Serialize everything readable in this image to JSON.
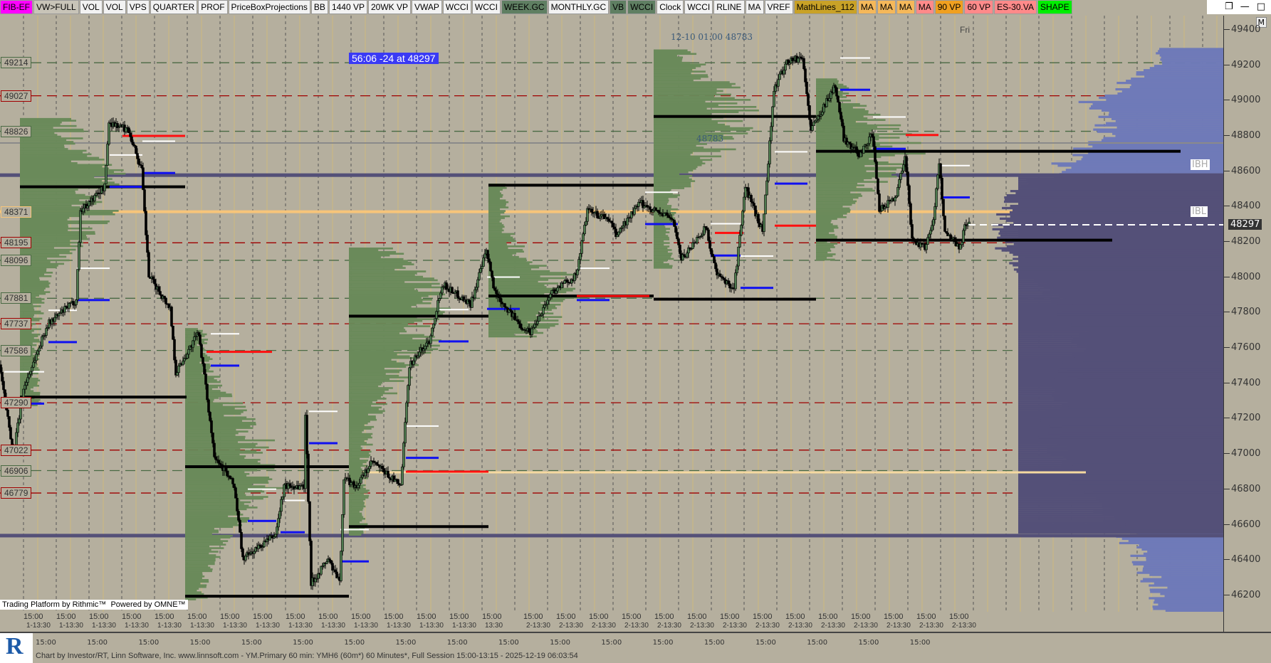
{
  "toolbar": {
    "buttons": [
      {
        "label": "FIB-EF",
        "color": "#ff00ff"
      },
      {
        "label": "VW>FULL",
        "color": "#c8c4b8"
      },
      {
        "label": "VOL",
        "color": "#f2f2f2"
      },
      {
        "label": "VOL",
        "color": "#f2f2f2"
      },
      {
        "label": "VPS",
        "color": "#f2f2f2"
      },
      {
        "label": "QUARTER",
        "color": "#f2f2f2"
      },
      {
        "label": "PROF",
        "color": "#f2f2f2"
      },
      {
        "label": "PriceBoxProjections",
        "color": "#f2f2f2"
      },
      {
        "label": "BB",
        "color": "#f2f2f2"
      },
      {
        "label": "1440 VP",
        "color": "#f2f2f2"
      },
      {
        "label": "20WK VP",
        "color": "#f2f2f2"
      },
      {
        "label": "VWAP",
        "color": "#f2f2f2"
      },
      {
        "label": "WCCI",
        "color": "#f2f2f2"
      },
      {
        "label": "WCCI",
        "color": "#f2f2f2"
      },
      {
        "label": "WEEK.GC",
        "color": "#5f7f62"
      },
      {
        "label": "MONTHLY.GC",
        "color": "#f2f2f2"
      },
      {
        "label": "VB",
        "color": "#5f7f62"
      },
      {
        "label": "WCCI",
        "color": "#5f7f62"
      },
      {
        "label": "Clock",
        "color": "#f2f2f2"
      },
      {
        "label": "WCCI",
        "color": "#f2f2f2"
      },
      {
        "label": "RLINE",
        "color": "#f2f2f2"
      },
      {
        "label": "MA",
        "color": "#f2f2f2"
      },
      {
        "label": "VREF",
        "color": "#f2f2f2"
      },
      {
        "label": "MathLines_112",
        "color": "#c9a227"
      },
      {
        "label": "MA",
        "color": "#f5b85a"
      },
      {
        "label": "MA",
        "color": "#f5b85a"
      },
      {
        "label": "MA",
        "color": "#f5b85a"
      },
      {
        "label": "MA",
        "color": "#ff8a8a"
      },
      {
        "label": "90 VP",
        "color": "#f0a020"
      },
      {
        "label": "60 VP",
        "color": "#ff8a8a"
      },
      {
        "label": "ES-30.VA",
        "color": "#ff8a8a"
      },
      {
        "label": "SHAPE",
        "color": "#00ee00"
      }
    ],
    "window_controls": {
      "restore": "❐",
      "minimize": "—",
      "maximize": "□"
    }
  },
  "chart": {
    "timer_label": "56:06  -24 at 48297",
    "annotation_top": "12-10 01:00   48783",
    "annotation_mid": "48783",
    "day_label": "Fri",
    "ibh_label": "IBH",
    "ibl_label": "IBL",
    "last_price": "48297",
    "m_button": "M",
    "colors": {
      "background": "#b5af9e",
      "up_candle": "#4e7a4e",
      "down_candle": "#000000",
      "session_profile": "#6a8a5a",
      "composite_profile": "#6f7ab8",
      "value_area": "#545078",
      "timer_bg": "#3a3af5"
    },
    "price_axis": [
      "49400",
      "49200",
      "49000",
      "48800",
      "48600",
      "48400",
      "48200",
      "48000",
      "47800",
      "47600",
      "47400",
      "47200",
      "47000",
      "46800",
      "46600",
      "46400",
      "46200"
    ],
    "level_labels": [
      {
        "text": "49214",
        "price": 49214,
        "kind": "green"
      },
      {
        "text": "49027",
        "price": 49027,
        "kind": "red"
      },
      {
        "text": "48826",
        "price": 48826,
        "kind": "green"
      },
      {
        "text": "48371",
        "price": 48371,
        "kind": "orange"
      },
      {
        "text": "48195",
        "price": 48195,
        "kind": "red"
      },
      {
        "text": "48096",
        "price": 48096,
        "kind": "green"
      },
      {
        "text": "47881",
        "price": 47881,
        "kind": "green"
      },
      {
        "text": "47737",
        "price": 47737,
        "kind": "red"
      },
      {
        "text": "47586",
        "price": 47586,
        "kind": "green"
      },
      {
        "text": "47290",
        "price": 47290,
        "kind": "red"
      },
      {
        "text": "47022",
        "price": 47022,
        "kind": "red"
      },
      {
        "text": "46906",
        "price": 46906,
        "kind": "green"
      },
      {
        "text": "46779",
        "price": 46779,
        "kind": "red"
      }
    ],
    "price_path": [
      [
        0,
        47505
      ],
      [
        10,
        47001
      ],
      [
        17,
        47367
      ],
      [
        34,
        47734
      ],
      [
        54,
        47871
      ],
      [
        57,
        48375
      ],
      [
        74,
        48512
      ],
      [
        77,
        48878
      ],
      [
        91,
        48832
      ],
      [
        100,
        48603
      ],
      [
        105,
        48008
      ],
      [
        120,
        47825
      ],
      [
        124,
        47459
      ],
      [
        140,
        47688
      ],
      [
        151,
        47001
      ],
      [
        165,
        46818
      ],
      [
        171,
        46406
      ],
      [
        194,
        46543
      ],
      [
        200,
        46818
      ],
      [
        214,
        46818
      ],
      [
        215,
        47230
      ],
      [
        219,
        46269
      ],
      [
        231,
        46406
      ],
      [
        239,
        46269
      ],
      [
        242,
        46864
      ],
      [
        251,
        46818
      ],
      [
        262,
        46955
      ],
      [
        282,
        46818
      ],
      [
        288,
        47505
      ],
      [
        302,
        47642
      ],
      [
        311,
        47963
      ],
      [
        331,
        47848
      ],
      [
        342,
        48146
      ],
      [
        348,
        47917
      ],
      [
        365,
        47734
      ],
      [
        373,
        47688
      ],
      [
        388,
        47917
      ],
      [
        405,
        48008
      ],
      [
        413,
        48375
      ],
      [
        428,
        48329
      ],
      [
        433,
        48237
      ],
      [
        450,
        48420
      ],
      [
        473,
        48329
      ],
      [
        479,
        48100
      ],
      [
        496,
        48283
      ],
      [
        504,
        48008
      ],
      [
        516,
        47940
      ],
      [
        524,
        48512
      ],
      [
        536,
        48260
      ],
      [
        544,
        49061
      ],
      [
        553,
        49221
      ],
      [
        564,
        49244
      ],
      [
        570,
        48832
      ],
      [
        579,
        48969
      ],
      [
        587,
        49084
      ],
      [
        593,
        48787
      ],
      [
        604,
        48695
      ],
      [
        613,
        48809
      ],
      [
        618,
        48375
      ],
      [
        630,
        48466
      ],
      [
        636,
        48695
      ],
      [
        641,
        48214
      ],
      [
        650,
        48168
      ],
      [
        656,
        48329
      ],
      [
        660,
        48649
      ],
      [
        664,
        48260
      ],
      [
        675,
        48168
      ],
      [
        678,
        48306
      ],
      [
        681,
        48297
      ]
    ],
    "sessions": [
      {
        "start": 14,
        "low": 47276,
        "high": 48901,
        "poc": 48512
      },
      {
        "start": 130,
        "low": 46177,
        "high": 47710,
        "poc": 46928
      },
      {
        "start": 245,
        "low": 46543,
        "high": 48168,
        "poc": 47780
      },
      {
        "start": 343,
        "low": 47665,
        "high": 48535,
        "poc": 47894
      },
      {
        "start": 459,
        "low": 48054,
        "high": 49290,
        "poc": 48910
      },
      {
        "start": 573,
        "low": 48100,
        "high": 49130,
        "poc": 48713
      }
    ],
    "poc_lines": [
      [
        14,
        130,
        48512
      ],
      [
        14,
        131,
        47322
      ],
      [
        130,
        245,
        46928
      ],
      [
        130,
        245,
        46195
      ],
      [
        245,
        343,
        47780
      ],
      [
        245,
        343,
        46589
      ],
      [
        343,
        459,
        48521
      ],
      [
        343,
        459,
        47894
      ],
      [
        459,
        573,
        48910
      ],
      [
        459,
        573,
        47876
      ],
      [
        573,
        829,
        48713
      ],
      [
        573,
        781,
        48210
      ]
    ],
    "blue_lines": [
      [
        54,
        77,
        47871
      ],
      [
        77,
        100,
        48512
      ],
      [
        100,
        123,
        48590
      ],
      [
        34,
        54,
        47633
      ],
      [
        3,
        31,
        47285
      ],
      [
        148,
        168,
        47500
      ],
      [
        217,
        237,
        47061
      ],
      [
        174,
        194,
        46621
      ],
      [
        197,
        214,
        46557
      ],
      [
        239,
        259,
        46392
      ],
      [
        285,
        308,
        46978
      ],
      [
        308,
        329,
        47637
      ],
      [
        342,
        365,
        47821
      ],
      [
        405,
        428,
        47871
      ],
      [
        453,
        476,
        48301
      ],
      [
        499,
        520,
        48123
      ],
      [
        520,
        543,
        47940
      ],
      [
        544,
        567,
        48530
      ],
      [
        590,
        611,
        49061
      ],
      [
        613,
        636,
        48727
      ],
      [
        661,
        681,
        48452
      ]
    ],
    "red_lines": [
      [
        86,
        130,
        48800
      ],
      [
        145,
        191,
        47578
      ],
      [
        285,
        343,
        46900
      ],
      [
        405,
        456,
        47894
      ],
      [
        502,
        522,
        48251
      ],
      [
        544,
        573,
        48292
      ],
      [
        636,
        659,
        48805
      ]
    ],
    "value_area": {
      "high": 48580,
      "low": 46550
    },
    "time_labels_row1": [
      "15:00",
      "15:00",
      "15:00",
      "15:00",
      "15:00",
      "15:00",
      "15:00",
      "15:00",
      "15:00",
      "15:00",
      "15:00",
      "15:00",
      "15:00",
      "15:00",
      "15:00",
      "15:00",
      "15:00",
      "15:00",
      "15:00",
      "15:00",
      "15:00",
      "15:00",
      "15:00",
      "15:00",
      "15:00",
      "15:00",
      "15:00",
      "15:00",
      "15:00"
    ],
    "time_labels_row2": [
      "1-13:30",
      "1-13:30",
      "1-13:30",
      "1-13:30",
      "1-13:30",
      "1-13:30",
      "1-13:30",
      "1-13:30",
      "1-13:30",
      "1-13:30",
      "1-13:30",
      "1-13:30",
      "1-13:30",
      "1-13:30",
      "13:30",
      "2-13:30",
      "2-13:30",
      "2-13:30",
      "2-13:30",
      "2-13:30",
      "2-13:30",
      "2-13:30",
      "2-13:30",
      "2-13:30",
      "2-13:30",
      "2-13:30",
      "2-13:30",
      "2-13:30",
      "2-13:30"
    ]
  },
  "branding": {
    "rithmic": "Trading Platform by Rithmic™",
    "omne": "Powered by OMNE™",
    "logo_letter": "R"
  },
  "footer": {
    "times": [
      "15:00",
      "15:00",
      "15:00",
      "15:00",
      "15:00",
      "15:00",
      "15:00",
      "15:00",
      "15:00",
      "15:00",
      "15:00",
      "15:00",
      "15:00",
      "15:00",
      "15:00",
      "15:00",
      "15:00",
      "15:00"
    ],
    "text": "Chart by Investor/RT, Linn Software, Inc. www.linnsoft.com - YM.Primary 60 min: YMH6 (60m*) 60 Minutes*, Full Session 15:00-13:15 - 2025-12-19 06:03:54"
  }
}
